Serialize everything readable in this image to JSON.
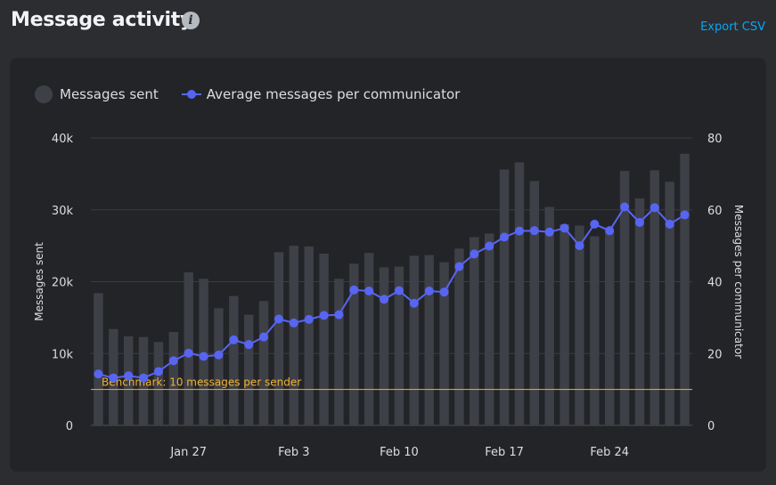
{
  "header": {
    "title": "Message activity",
    "info_icon": "info-icon",
    "export_label": "Export CSV"
  },
  "colors": {
    "page_bg": "#2b2d31",
    "card_bg": "#232428",
    "bar": "#3e4047",
    "line": "#5865f2",
    "benchmark": "#f0b232",
    "link": "#00a8fc"
  },
  "chart_data": {
    "type": "bar+line",
    "legend": [
      {
        "name": "Messages sent",
        "swatch": "bar"
      },
      {
        "name": "Average messages per communicator",
        "swatch": "line"
      }
    ],
    "ylabel_left": "Messages sent",
    "ylabel_right": "Messages per communicator",
    "ylim_left": [
      0,
      40000
    ],
    "ylim_right": [
      0,
      80
    ],
    "yticks_left": [
      "0",
      "10k",
      "20k",
      "30k",
      "40k"
    ],
    "yticks_right": [
      "0",
      "20",
      "40",
      "60",
      "80"
    ],
    "xticks": [
      "Jan 27",
      "Feb 3",
      "Feb 10",
      "Feb 17",
      "Feb 24"
    ],
    "xtick_day_index": [
      6,
      13,
      20,
      27,
      34
    ],
    "grid": "horizontal",
    "benchmark": {
      "label": "Benchmark: 10 messages per sender",
      "value": 10,
      "axis": "right"
    },
    "series": [
      {
        "name": "Messages sent",
        "kind": "bar",
        "axis": "left",
        "values": [
          18400,
          13400,
          12400,
          12300,
          11600,
          13000,
          21300,
          20400,
          16300,
          18000,
          15400,
          17300,
          24100,
          25000,
          24900,
          23900,
          20400,
          22500,
          24000,
          22000,
          22100,
          23600,
          23700,
          22700,
          24600,
          26200,
          26700,
          35600,
          36600,
          34000,
          30400,
          28000,
          27800,
          26300,
          27000,
          35400,
          31600,
          35500,
          33900,
          37800
        ]
      },
      {
        "name": "Average messages per communicator",
        "kind": "line",
        "axis": "right",
        "values": [
          14.3,
          13.2,
          13.8,
          13.2,
          15,
          18,
          20.1,
          19.2,
          19.6,
          23.8,
          22.5,
          24.6,
          29.6,
          28.5,
          29.5,
          30.6,
          30.8,
          37.7,
          37.4,
          35.1,
          37.5,
          34,
          37.4,
          37.1,
          44.2,
          47.7,
          49.9,
          52.4,
          54.1,
          54.2,
          53.8,
          54.9,
          50,
          56,
          54.2,
          60.8,
          56.5,
          60.6,
          56,
          58.6
        ]
      }
    ]
  }
}
